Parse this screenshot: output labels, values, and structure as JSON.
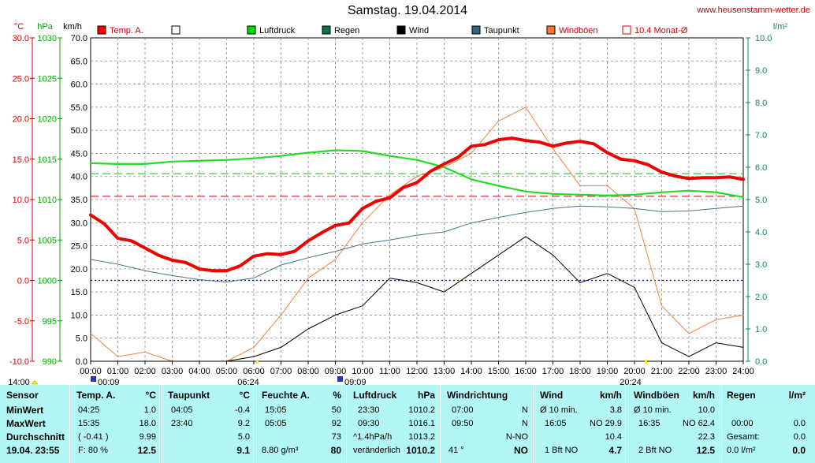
{
  "title": "Samstag. 19.04.2014",
  "site": "www.heusenstamm-wetter.de",
  "axis_units": {
    "temp": "°C",
    "press": "hPa",
    "wind": "km/h",
    "rain": "l/m²"
  },
  "legend": [
    {
      "label": "Temp. A.",
      "color": "#ff0000"
    },
    {
      "label": "",
      "color": "#ffffff"
    },
    {
      "label": "Luftdruck",
      "color": "#00dd00"
    },
    {
      "label": "Regen",
      "color": "#007744"
    },
    {
      "label": "Wind",
      "color": "#000000"
    },
    {
      "label": "Taupunkt",
      "color": "#336677"
    },
    {
      "label": "Windböen",
      "color": "#ff7733"
    },
    {
      "label": "10.4 Monat-Ø",
      "color": "#cc0000"
    }
  ],
  "colors": {
    "temp": "#ee0000",
    "press": "#22dd22",
    "dew": "#447788",
    "wind": "#000000",
    "gust": "#f08040",
    "grid": "#888888",
    "press_axis": "#00aa00",
    "rain_axis": "#118855",
    "stats_bg": "#b3f6f6"
  },
  "event_labels": {
    "sunrise": "06:24",
    "sunset": "20:24",
    "moon1": "00:09",
    "moon2": "09:09",
    "start": "14:00"
  },
  "chart_data": {
    "type": "line",
    "x_unit": "hour of day",
    "xlim": [
      0,
      24
    ],
    "x_ticks": [
      "00:00",
      "01:00",
      "02:00",
      "03:00",
      "04:00",
      "05:00",
      "06:00",
      "07:00",
      "08:00",
      "09:00",
      "10:00",
      "11:00",
      "12:00",
      "13:00",
      "14:00",
      "15:00",
      "16:00",
      "17:00",
      "18:00",
      "19:00",
      "20:00",
      "21:00",
      "22:00",
      "23:00",
      "24:00"
    ],
    "y_left_temp": {
      "label": "°C",
      "ylim": [
        -10,
        30
      ],
      "ticks": [
        "30.0",
        "25.0",
        "20.0",
        "15.0",
        "10.0",
        "5.0",
        "0.0",
        "-5.0",
        "-10.0"
      ]
    },
    "y_left_press": {
      "label": "hPa",
      "ylim": [
        990,
        1030
      ],
      "ticks": [
        "1030",
        "1025",
        "1020",
        "1015",
        "1010",
        "1005",
        "1000",
        "995",
        "990"
      ]
    },
    "y_left_wind": {
      "label": "km/h",
      "ylim": [
        0,
        70
      ],
      "ticks": [
        "70.0",
        "65.0",
        "60.0",
        "55.0",
        "50.0",
        "45.0",
        "40.0",
        "35.0",
        "30.0",
        "25.0",
        "20.0",
        "15.0",
        "10.0",
        "5.0",
        "0.0"
      ]
    },
    "y_right_rain": {
      "label": "l/m²",
      "ylim": [
        0,
        10
      ],
      "ticks": [
        "10.0",
        "9.0",
        "8.0",
        "7.0",
        "6.0",
        "5.0",
        "4.0",
        "3.0",
        "2.0",
        "1.0",
        "0.0"
      ]
    },
    "reference_lines": [
      {
        "name": "10.4 Monat-Ø",
        "axis": "temp",
        "value": 10.4
      },
      {
        "name": "Luftdruck-Ø",
        "axis": "press",
        "value": 1013.2
      },
      {
        "name": "0°C",
        "axis": "temp",
        "value": 0.0
      }
    ],
    "series": [
      {
        "name": "Temp. A.",
        "axis": "temp",
        "x": [
          0,
          0.5,
          1,
          1.5,
          2,
          2.5,
          3,
          3.5,
          4,
          4.5,
          5,
          5.5,
          6,
          6.5,
          7,
          7.5,
          8,
          8.5,
          9,
          9.5,
          10,
          10.5,
          11,
          11.5,
          12,
          12.5,
          13,
          13.5,
          14,
          14.5,
          15,
          15.5,
          16,
          16.5,
          17,
          17.5,
          18,
          18.5,
          19,
          19.5,
          20,
          20.5,
          21,
          21.5,
          22,
          22.5,
          23,
          23.5,
          24
        ],
        "y": [
          8.1,
          7.0,
          5.2,
          4.9,
          4.0,
          3.1,
          2.5,
          2.2,
          1.4,
          1.2,
          1.2,
          1.8,
          3.0,
          3.3,
          3.2,
          3.6,
          4.9,
          5.9,
          6.8,
          7.1,
          8.9,
          9.8,
          10.2,
          11.5,
          12.1,
          13.5,
          14.4,
          15.2,
          16.6,
          16.8,
          17.4,
          17.6,
          17.3,
          17.1,
          16.6,
          17.0,
          17.2,
          16.9,
          15.8,
          15.0,
          14.8,
          14.3,
          13.4,
          12.9,
          12.6,
          12.7,
          12.7,
          12.8,
          12.5
        ]
      },
      {
        "name": "Luftdruck",
        "axis": "press",
        "x": [
          0,
          1,
          2,
          3,
          4,
          5,
          6,
          7,
          8,
          9,
          10,
          11,
          12,
          13,
          14,
          15,
          16,
          17,
          18,
          19,
          20,
          21,
          22,
          23,
          24
        ],
        "y": [
          1014.5,
          1014.4,
          1014.4,
          1014.7,
          1014.8,
          1014.9,
          1015.1,
          1015.4,
          1015.8,
          1016.1,
          1016.0,
          1015.4,
          1014.9,
          1014.0,
          1012.5,
          1011.7,
          1011.0,
          1010.7,
          1010.6,
          1010.5,
          1010.6,
          1010.9,
          1011.1,
          1010.9,
          1010.3
        ]
      },
      {
        "name": "Taupunkt",
        "axis": "temp",
        "x": [
          0,
          1,
          2,
          3,
          4,
          5,
          6,
          7,
          8,
          9,
          10,
          11,
          12,
          13,
          14,
          15,
          16,
          17,
          18,
          19,
          20,
          21,
          22,
          23,
          24
        ],
        "y": [
          2.6,
          2.0,
          1.2,
          0.6,
          0.1,
          -0.2,
          0.3,
          1.9,
          2.8,
          3.6,
          4.5,
          5.0,
          5.6,
          6.0,
          7.1,
          7.8,
          8.4,
          8.9,
          9.2,
          9.1,
          8.9,
          8.5,
          8.6,
          8.9,
          9.2
        ]
      },
      {
        "name": "Wind",
        "axis": "wind",
        "x": [
          0,
          1,
          2,
          3,
          4,
          5,
          6,
          7,
          8,
          9,
          10,
          11,
          12,
          13,
          14,
          15,
          16,
          17,
          18,
          19,
          20,
          21,
          22,
          23,
          24
        ],
        "y": [
          0.0,
          0.0,
          0.0,
          0.0,
          0.0,
          0.0,
          1.0,
          3.0,
          7.0,
          10.0,
          12.0,
          18.0,
          17.0,
          15.0,
          19.0,
          23.0,
          27.0,
          23.0,
          17.0,
          19.0,
          16.0,
          4.0,
          1.0,
          4.0,
          3.0
        ]
      },
      {
        "name": "Windböen",
        "axis": "wind",
        "x": [
          0,
          1,
          2,
          3,
          4,
          5,
          6,
          7,
          8,
          9,
          10,
          11,
          12,
          13,
          14,
          15,
          16,
          17,
          18,
          19,
          20,
          21,
          22,
          23,
          24
        ],
        "y": [
          6.0,
          1.0,
          2.0,
          0.0,
          0.0,
          0.0,
          3.0,
          10.0,
          18.0,
          22.0,
          30.0,
          36.0,
          40.0,
          42.0,
          45.0,
          52.0,
          55.0,
          46.0,
          38.0,
          38.0,
          33.0,
          12.0,
          6.0,
          9.0,
          10.0
        ]
      }
    ]
  },
  "stats": {
    "sensor": {
      "header": "Sensor",
      "rows": [
        "MinWert",
        "MaxWert",
        "Durchschnitt",
        "19.04. 23:55"
      ]
    },
    "temp": {
      "header": "Temp. A.",
      "unit": "°C",
      "rows": [
        [
          "04:25",
          "1.0"
        ],
        [
          "15:35",
          "18.0"
        ],
        [
          "( -0.41 )",
          "9.99"
        ],
        [
          "F: 80 %",
          "12.5"
        ]
      ]
    },
    "dew": {
      "header": "Taupunkt",
      "unit": "°C",
      "rows": [
        [
          "04:05",
          "-0.4"
        ],
        [
          "23:40",
          "9.2"
        ],
        [
          "",
          "5.0"
        ],
        [
          "",
          "9.1"
        ]
      ]
    },
    "hum": {
      "header": "Feuchte A.",
      "unit": "%",
      "rows": [
        [
          "15:05",
          "50"
        ],
        [
          "05:05",
          "92"
        ],
        [
          "",
          "73"
        ],
        [
          "8.80 g/m³",
          "80"
        ]
      ]
    },
    "press": {
      "header": "Luftdruck",
      "unit": "hPa",
      "rows": [
        [
          "23:30",
          "1010.2"
        ],
        [
          "09:30",
          "1016.1"
        ],
        [
          "^1.4hPa/h",
          "1013.2"
        ],
        [
          "veränderlich",
          "1010.2"
        ]
      ]
    },
    "winddir": {
      "header": "Windrichtung",
      "unit": "",
      "rows": [
        [
          "07:00",
          "N"
        ],
        [
          "09:50",
          "N"
        ],
        [
          "",
          "N-NO"
        ],
        [
          "41 °",
          "NO"
        ]
      ]
    },
    "wind": {
      "header": "Wind",
      "unit": "km/h",
      "rows": [
        [
          "Ø 10 min.",
          "3.8"
        ],
        [
          "16:05",
          "NO 29.9"
        ],
        [
          "",
          "10.4"
        ],
        [
          "1 Bft NO",
          "4.7"
        ]
      ]
    },
    "gust": {
      "header": "Windböen",
      "unit": "km/h",
      "rows": [
        [
          "Ø 10 min.",
          "10.0"
        ],
        [
          "16:35",
          "NO 62.4"
        ],
        [
          "",
          "22.3"
        ],
        [
          "2 Bft NO",
          "12.5"
        ]
      ]
    },
    "rain": {
      "header": "Regen",
      "unit": "l/m²",
      "rows": [
        [
          "",
          ""
        ],
        [
          "00:00",
          "0.0"
        ],
        [
          "Gesamt:",
          "0.0"
        ],
        [
          "0.0 l/m²",
          "0.0"
        ]
      ]
    }
  }
}
